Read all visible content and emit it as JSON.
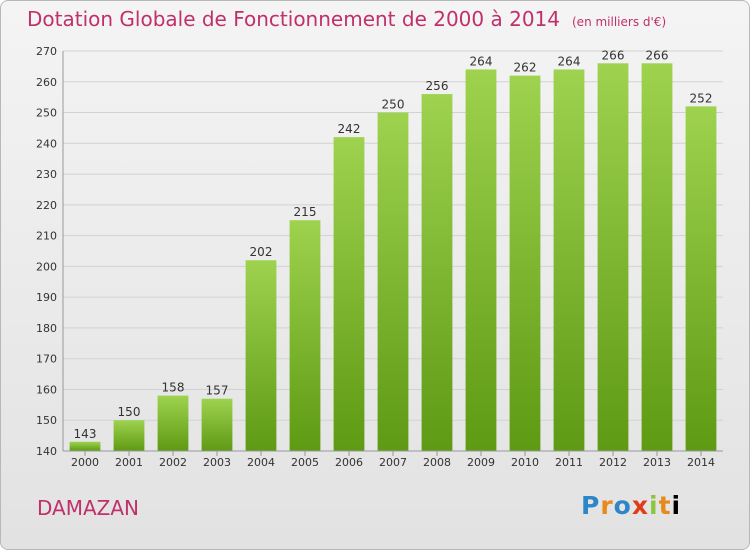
{
  "chart_data": {
    "type": "bar",
    "title": "Dotation Globale de Fonctionnement de 2000 à 2014",
    "unit_label": "(en milliers d'€)",
    "categories": [
      "2000",
      "2001",
      "2002",
      "2003",
      "2004",
      "2005",
      "2006",
      "2007",
      "2008",
      "2009",
      "2010",
      "2011",
      "2012",
      "2013",
      "2014"
    ],
    "values": [
      143,
      150,
      158,
      157,
      202,
      215,
      242,
      250,
      256,
      264,
      262,
      264,
      266,
      266,
      252
    ],
    "ylim": [
      140,
      270
    ],
    "yticks": [
      140,
      150,
      160,
      170,
      180,
      190,
      200,
      210,
      220,
      230,
      240,
      250,
      260,
      270
    ],
    "grid": true,
    "bar_color_top": "#9ed24f",
    "bar_color_bottom": "#5e9a14"
  },
  "commune": "DAMAZAN",
  "brand": {
    "letters": [
      "P",
      "r",
      "o",
      "x",
      "i",
      "t",
      "i"
    ]
  }
}
